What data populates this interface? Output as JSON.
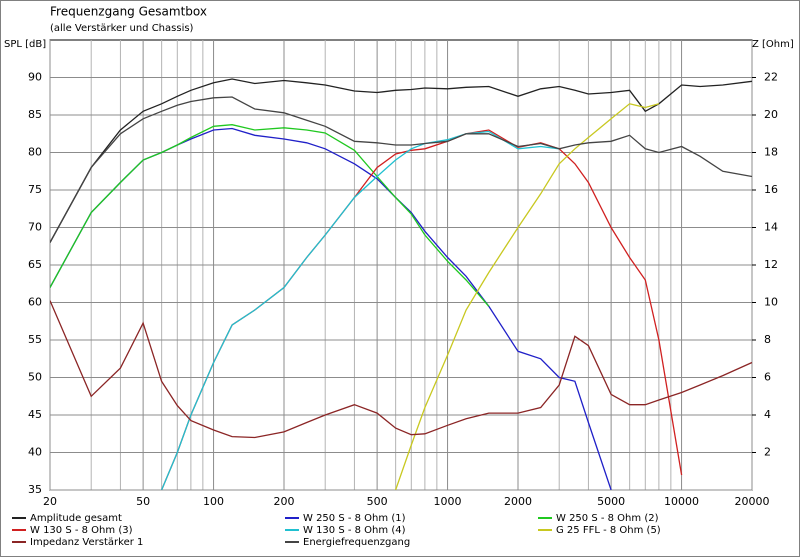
{
  "chart_data": {
    "type": "line",
    "title": "Frequenzgang Gesamtbox",
    "subtitle": "(alle Verstärker und Chassis)",
    "y_label": "SPL [dB]",
    "y2_label": "Z [Ohm]",
    "log_x": true,
    "grid": true,
    "legend": "bottom",
    "xlim": [
      20,
      20000
    ],
    "xticks": [
      20,
      50,
      100,
      200,
      500,
      1000,
      2000,
      5000,
      10000,
      20000
    ],
    "xminorticks": [
      30,
      40,
      60,
      70,
      80,
      90,
      300,
      400,
      600,
      700,
      800,
      900,
      3000,
      4000,
      6000,
      7000,
      8000,
      9000
    ],
    "ylim": [
      35,
      95
    ],
    "yticks": [
      35,
      40,
      45,
      50,
      55,
      60,
      65,
      70,
      75,
      80,
      85,
      90
    ],
    "y2lim": [
      0,
      24
    ],
    "y2ticks": [
      2,
      4,
      6,
      8,
      10,
      12,
      14,
      16,
      18,
      20,
      22
    ],
    "x": [
      20,
      30,
      40,
      50,
      60,
      70,
      80,
      100,
      120,
      150,
      200,
      250,
      300,
      400,
      500,
      600,
      700,
      800,
      1000,
      1200,
      1500,
      2000,
      2500,
      3000,
      3500,
      4000,
      5000,
      6000,
      7000,
      8000,
      10000,
      12000,
      15000,
      20000
    ],
    "series": [
      {
        "name": "Amplitude gesamt",
        "color": "#222222",
        "values": [
          68,
          78,
          83,
          85.5,
          86.5,
          87.5,
          88.3,
          89.3,
          89.8,
          89.2,
          89.6,
          89.3,
          89.0,
          88.2,
          88.0,
          88.3,
          88.4,
          88.6,
          88.5,
          88.7,
          88.8,
          87.5,
          88.5,
          88.8,
          88.3,
          87.8,
          88.0,
          88.3,
          85.5,
          86.5,
          89.0,
          88.8,
          89.0,
          89.5
        ]
      },
      {
        "name": "W 250 S - 8 Ohm  (1)",
        "color": "#2020c8",
        "values": [
          62,
          72,
          76,
          79,
          80,
          81,
          81.8,
          83,
          83.2,
          82.3,
          81.8,
          81.3,
          80.5,
          78.5,
          76.5,
          74,
          72,
          69.5,
          66,
          63.5,
          59.5,
          53.5,
          52.5,
          50,
          49.5,
          44,
          35,
          null,
          null,
          null,
          null,
          null,
          null,
          null
        ]
      },
      {
        "name": "W 250 S - 8 Ohm  (2)",
        "color": "#20c820",
        "values": [
          62,
          72,
          76,
          79,
          80,
          81,
          82,
          83.5,
          83.7,
          83,
          83.3,
          83,
          82.6,
          80.3,
          76.8,
          74,
          71.8,
          69,
          65.5,
          63,
          59.5,
          null,
          null,
          null,
          null,
          null,
          null,
          null,
          null,
          null,
          null,
          null,
          null,
          null
        ]
      },
      {
        "name": "W 130 S - 8 Ohm (3)",
        "color": "#d02020",
        "values": [
          null,
          null,
          null,
          null,
          35,
          40,
          45,
          52,
          57,
          59,
          62,
          66,
          69,
          74,
          78,
          79.8,
          80.3,
          80.5,
          81.5,
          82.5,
          83,
          80.7,
          81.3,
          80.5,
          78.5,
          76,
          70,
          66,
          63,
          55,
          37,
          null,
          null,
          null
        ]
      },
      {
        "name": "W 130 S - 8 Ohm (4)",
        "color": "#20c0d0",
        "values": [
          null,
          null,
          null,
          null,
          35,
          40,
          45,
          52,
          57,
          59,
          62,
          66,
          69,
          74,
          76.8,
          79,
          80.5,
          81.2,
          81.7,
          82.5,
          82.8,
          80.5,
          80.8,
          80.5,
          null,
          null,
          null,
          null,
          null,
          null,
          null,
          null,
          null,
          null
        ]
      },
      {
        "name": "G 25 FFL - 8 Ohm (5)",
        "color": "#c8c820",
        "values": [
          null,
          null,
          null,
          null,
          null,
          null,
          null,
          null,
          null,
          null,
          null,
          null,
          null,
          null,
          null,
          35,
          41,
          46,
          53,
          59,
          64,
          70,
          74.5,
          78.5,
          80.5,
          82,
          84.5,
          86.5,
          86,
          86.5,
          null,
          null,
          null,
          null
        ]
      },
      {
        "name": "Impedanz Verstärker 1",
        "color": "#8b2525",
        "axis": "y2",
        "values": [
          10.1,
          5.0,
          6.5,
          8.9,
          5.8,
          4.5,
          3.7,
          3.2,
          2.85,
          2.8,
          3.1,
          3.6,
          4.0,
          4.55,
          4.1,
          3.3,
          2.95,
          3.0,
          3.45,
          3.8,
          4.1,
          4.1,
          4.4,
          5.6,
          8.2,
          7.7,
          5.1,
          4.55,
          4.55,
          4.8,
          5.2,
          5.6,
          6.1,
          6.8
        ]
      },
      {
        "name": "Energiefrequenzgang",
        "color": "#444444",
        "values": [
          68,
          78,
          82.5,
          84.5,
          85.5,
          86.3,
          86.8,
          87.3,
          87.4,
          85.8,
          85.3,
          84.3,
          83.5,
          81.5,
          81.3,
          81.0,
          81.0,
          81.2,
          81.5,
          82.5,
          82.5,
          80.8,
          81.2,
          80.5,
          81.0,
          81.3,
          81.5,
          82.3,
          80.5,
          80.0,
          80.8,
          79.5,
          77.5,
          76.8
        ]
      }
    ]
  }
}
